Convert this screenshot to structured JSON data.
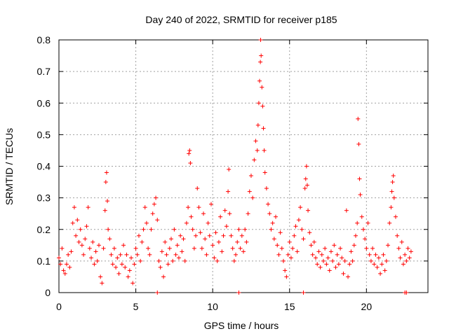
{
  "chart_data": {
    "type": "scatter",
    "title": "Day 240 of 2022, SRMTID for receiver p185",
    "xlabel": "GPS time / hours",
    "ylabel": "SRMTID / TECUs",
    "xlim": [
      0,
      24
    ],
    "ylim": [
      0,
      0.8
    ],
    "xticks": [
      0,
      5,
      10,
      15,
      20
    ],
    "yticks": [
      0,
      0.1,
      0.2,
      0.3,
      0.4,
      0.5,
      0.6,
      0.7,
      0.8
    ],
    "xtick_labels": [
      "0",
      "5",
      "10",
      "15",
      "20"
    ],
    "ytick_labels": [
      "0",
      "0.1",
      "0.2",
      "0.3",
      "0.4",
      "0.5",
      "0.6",
      "0.7",
      "0.8"
    ],
    "grid": true,
    "marker": "+",
    "series": [
      {
        "name": "SRMTID",
        "color": "#ff0000",
        "points": [
          [
            0.0,
            0.11
          ],
          [
            0.1,
            0.09
          ],
          [
            0.2,
            0.14
          ],
          [
            0.3,
            0.07
          ],
          [
            0.4,
            0.06
          ],
          [
            0.5,
            0.09
          ],
          [
            0.6,
            0.12
          ],
          [
            0.7,
            0.08
          ],
          [
            0.8,
            0.13
          ],
          [
            0.9,
            0.22
          ],
          [
            1.0,
            0.27
          ],
          [
            1.1,
            0.18
          ],
          [
            1.2,
            0.23
          ],
          [
            1.3,
            0.16
          ],
          [
            1.4,
            0.2
          ],
          [
            1.5,
            0.15
          ],
          [
            1.6,
            0.12
          ],
          [
            1.7,
            0.17
          ],
          [
            1.8,
            0.21
          ],
          [
            1.9,
            0.27
          ],
          [
            2.0,
            0.14
          ],
          [
            2.1,
            0.11
          ],
          [
            2.2,
            0.16
          ],
          [
            2.3,
            0.09
          ],
          [
            2.4,
            0.13
          ],
          [
            2.5,
            0.1
          ],
          [
            2.6,
            0.15
          ],
          [
            2.7,
            0.05
          ],
          [
            2.8,
            0.03
          ],
          [
            2.9,
            0.14
          ],
          [
            3.0,
            0.26
          ],
          [
            3.05,
            0.35
          ],
          [
            3.1,
            0.38
          ],
          [
            3.15,
            0.29
          ],
          [
            3.2,
            0.2
          ],
          [
            3.3,
            0.17
          ],
          [
            3.4,
            0.12
          ],
          [
            3.5,
            0.09
          ],
          [
            3.6,
            0.14
          ],
          [
            3.7,
            0.08
          ],
          [
            3.8,
            0.11
          ],
          [
            3.9,
            0.06
          ],
          [
            4.0,
            0.12
          ],
          [
            4.1,
            0.09
          ],
          [
            4.2,
            0.15
          ],
          [
            4.3,
            0.08
          ],
          [
            4.4,
            0.12
          ],
          [
            4.5,
            0.05
          ],
          [
            4.6,
            0.07
          ],
          [
            4.7,
            0.11
          ],
          [
            4.8,
            0.03
          ],
          [
            4.9,
            0.09
          ],
          [
            5.0,
            0.14
          ],
          [
            5.1,
            0.12
          ],
          [
            5.2,
            0.18
          ],
          [
            5.3,
            0.1
          ],
          [
            5.4,
            0.16
          ],
          [
            5.5,
            0.2
          ],
          [
            5.6,
            0.27
          ],
          [
            5.7,
            0.22
          ],
          [
            5.8,
            0.14
          ],
          [
            5.9,
            0.12
          ],
          [
            6.0,
            0.2
          ],
          [
            6.1,
            0.25
          ],
          [
            6.2,
            0.28
          ],
          [
            6.3,
            0.3
          ],
          [
            6.4,
            0.23
          ],
          [
            6.5,
            0.1
          ],
          [
            6.6,
            0.08
          ],
          [
            6.7,
            0.13
          ],
          [
            6.8,
            0.05
          ],
          [
            6.9,
            0.16
          ],
          [
            7.0,
            0.12
          ],
          [
            7.1,
            0.09
          ],
          [
            7.2,
            0.14
          ],
          [
            7.3,
            0.17
          ],
          [
            7.4,
            0.1
          ],
          [
            7.5,
            0.2
          ],
          [
            7.6,
            0.12
          ],
          [
            7.7,
            0.15
          ],
          [
            7.8,
            0.11
          ],
          [
            7.9,
            0.18
          ],
          [
            8.0,
            0.13
          ],
          [
            8.1,
            0.17
          ],
          [
            8.2,
            0.1
          ],
          [
            8.3,
            0.22
          ],
          [
            8.4,
            0.27
          ],
          [
            8.45,
            0.44
          ],
          [
            8.5,
            0.45
          ],
          [
            8.55,
            0.41
          ],
          [
            8.6,
            0.24
          ],
          [
            8.7,
            0.2
          ],
          [
            8.8,
            0.14
          ],
          [
            8.9,
            0.18
          ],
          [
            9.0,
            0.33
          ],
          [
            9.1,
            0.27
          ],
          [
            9.2,
            0.19
          ],
          [
            9.3,
            0.14
          ],
          [
            9.4,
            0.25
          ],
          [
            9.5,
            0.17
          ],
          [
            9.6,
            0.12
          ],
          [
            9.7,
            0.22
          ],
          [
            9.8,
            0.18
          ],
          [
            9.9,
            0.28
          ],
          [
            10.0,
            0.15
          ],
          [
            10.1,
            0.11
          ],
          [
            10.2,
            0.19
          ],
          [
            10.3,
            0.1
          ],
          [
            10.4,
            0.16
          ],
          [
            10.5,
            0.24
          ],
          [
            10.6,
            0.13
          ],
          [
            10.7,
            0.18
          ],
          [
            10.8,
            0.26
          ],
          [
            10.9,
            0.21
          ],
          [
            11.0,
            0.32
          ],
          [
            11.05,
            0.39
          ],
          [
            11.1,
            0.25
          ],
          [
            11.2,
            0.18
          ],
          [
            11.3,
            0.14
          ],
          [
            11.4,
            0.1
          ],
          [
            11.5,
            0.12
          ],
          [
            11.6,
            0.16
          ],
          [
            11.7,
            0.2
          ],
          [
            11.8,
            0.14
          ],
          [
            11.9,
            0.18
          ],
          [
            12.0,
            0.13
          ],
          [
            12.1,
            0.2
          ],
          [
            12.2,
            0.16
          ],
          [
            12.3,
            0.25
          ],
          [
            12.4,
            0.32
          ],
          [
            12.5,
            0.37
          ],
          [
            12.6,
            0.3
          ],
          [
            12.7,
            0.42
          ],
          [
            12.8,
            0.48
          ],
          [
            12.9,
            0.45
          ],
          [
            12.95,
            0.53
          ],
          [
            13.0,
            0.6
          ],
          [
            13.05,
            0.67
          ],
          [
            13.1,
            0.73
          ],
          [
            13.12,
            0.8
          ],
          [
            13.15,
            0.75
          ],
          [
            13.2,
            0.65
          ],
          [
            13.25,
            0.59
          ],
          [
            13.3,
            0.52
          ],
          [
            13.35,
            0.45
          ],
          [
            13.4,
            0.38
          ],
          [
            13.5,
            0.33
          ],
          [
            13.6,
            0.28
          ],
          [
            13.7,
            0.25
          ],
          [
            13.8,
            0.2
          ],
          [
            13.9,
            0.22
          ],
          [
            14.0,
            0.17
          ],
          [
            14.1,
            0.24
          ],
          [
            14.2,
            0.15
          ],
          [
            14.3,
            0.12
          ],
          [
            14.4,
            0.19
          ],
          [
            14.5,
            0.14
          ],
          [
            14.6,
            0.1
          ],
          [
            14.7,
            0.07
          ],
          [
            14.8,
            0.05
          ],
          [
            14.9,
            0.12
          ],
          [
            15.0,
            0.16
          ],
          [
            15.1,
            0.11
          ],
          [
            15.2,
            0.14
          ],
          [
            15.3,
            0.18
          ],
          [
            15.4,
            0.21
          ],
          [
            15.5,
            0.13
          ],
          [
            15.6,
            0.23
          ],
          [
            15.7,
            0.27
          ],
          [
            15.8,
            0.2
          ],
          [
            15.9,
            0.17
          ],
          [
            16.0,
            0.33
          ],
          [
            16.05,
            0.36
          ],
          [
            16.1,
            0.4
          ],
          [
            16.15,
            0.34
          ],
          [
            16.2,
            0.26
          ],
          [
            16.3,
            0.19
          ],
          [
            16.4,
            0.15
          ],
          [
            16.5,
            0.12
          ],
          [
            16.6,
            0.16
          ],
          [
            16.7,
            0.11
          ],
          [
            16.8,
            0.09
          ],
          [
            16.9,
            0.13
          ],
          [
            17.0,
            0.08
          ],
          [
            17.1,
            0.12
          ],
          [
            17.2,
            0.1
          ],
          [
            17.3,
            0.14
          ],
          [
            17.4,
            0.09
          ],
          [
            17.5,
            0.11
          ],
          [
            17.6,
            0.07
          ],
          [
            17.7,
            0.13
          ],
          [
            17.8,
            0.1
          ],
          [
            17.9,
            0.15
          ],
          [
            18.0,
            0.08
          ],
          [
            18.1,
            0.12
          ],
          [
            18.2,
            0.09
          ],
          [
            18.3,
            0.14
          ],
          [
            18.4,
            0.11
          ],
          [
            18.5,
            0.06
          ],
          [
            18.6,
            0.1
          ],
          [
            18.7,
            0.26
          ],
          [
            18.8,
            0.05
          ],
          [
            18.9,
            0.09
          ],
          [
            19.0,
            0.13
          ],
          [
            19.1,
            0.1
          ],
          [
            19.2,
            0.15
          ],
          [
            19.3,
            0.18
          ],
          [
            19.4,
            0.22
          ],
          [
            19.45,
            0.55
          ],
          [
            19.5,
            0.47
          ],
          [
            19.55,
            0.36
          ],
          [
            19.6,
            0.31
          ],
          [
            19.7,
            0.24
          ],
          [
            19.8,
            0.2
          ],
          [
            19.9,
            0.17
          ],
          [
            20.0,
            0.14
          ],
          [
            20.1,
            0.22
          ],
          [
            20.2,
            0.12
          ],
          [
            20.3,
            0.1
          ],
          [
            20.4,
            0.14
          ],
          [
            20.5,
            0.09
          ],
          [
            20.6,
            0.12
          ],
          [
            20.7,
            0.08
          ],
          [
            20.8,
            0.11
          ],
          [
            20.9,
            0.06
          ],
          [
            21.0,
            0.09
          ],
          [
            21.1,
            0.12
          ],
          [
            21.2,
            0.07
          ],
          [
            21.3,
            0.1
          ],
          [
            21.4,
            0.15
          ],
          [
            21.5,
            0.22
          ],
          [
            21.6,
            0.27
          ],
          [
            21.65,
            0.32
          ],
          [
            21.7,
            0.35
          ],
          [
            21.75,
            0.37
          ],
          [
            21.8,
            0.3
          ],
          [
            21.9,
            0.24
          ],
          [
            22.0,
            0.18
          ],
          [
            22.1,
            0.14
          ],
          [
            22.2,
            0.11
          ],
          [
            22.3,
            0.16
          ],
          [
            22.4,
            0.09
          ],
          [
            22.5,
            0.12
          ],
          [
            22.6,
            0.1
          ],
          [
            22.7,
            0.14
          ],
          [
            22.8,
            0.11
          ],
          [
            22.9,
            0.13
          ],
          [
            6.4,
            0.0
          ],
          [
            11.7,
            0.0
          ],
          [
            15.9,
            0.0
          ],
          [
            22.5,
            0.0
          ],
          [
            22.6,
            0.0
          ]
        ]
      }
    ]
  }
}
